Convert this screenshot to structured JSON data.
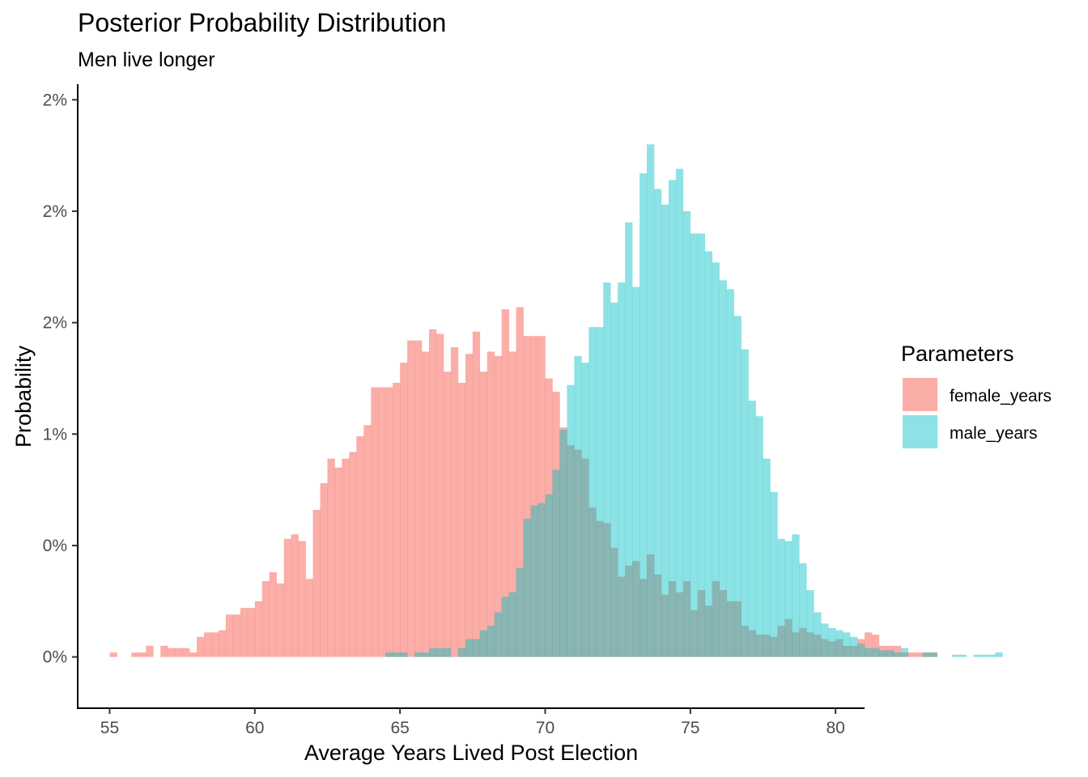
{
  "chart_data": {
    "type": "histogram",
    "title": "Posterior Probability Distribution",
    "subtitle": "Men live longer",
    "xlabel": "Average Years Lived Post Election",
    "ylabel": "Probability",
    "xlim": [
      53.9,
      81.0
    ],
    "ylim": [
      -0.0023,
      0.0257
    ],
    "x_ticks": [
      55,
      60,
      65,
      70,
      75,
      80
    ],
    "x_tick_labels": [
      "55",
      "60",
      "65",
      "70",
      "75",
      "80"
    ],
    "y_ticks": [
      0,
      0.005,
      0.01,
      0.015,
      0.02,
      0.025
    ],
    "y_tick_labels": [
      "0%",
      "0%",
      "1%",
      "2%",
      "2%",
      "2%"
    ],
    "grid": false,
    "legend": {
      "title": "Parameters",
      "placement": "right"
    },
    "bin_width": 0.25,
    "series": [
      {
        "name": "female_years",
        "color": "#F8766D",
        "opacity": 0.6,
        "start": 55.0,
        "values": [
          0.0002,
          0,
          0,
          0.0002,
          0.0002,
          0.0005,
          0,
          0.0005,
          0.0004,
          0.0004,
          0.0004,
          0.0002,
          0.0009,
          0.0011,
          0.0011,
          0.0012,
          0.0019,
          0.0019,
          0.0022,
          0.0022,
          0.0025,
          0.0034,
          0.0038,
          0.0033,
          0.0053,
          0.0055,
          0.0052,
          0.0035,
          0.0066,
          0.0078,
          0.0089,
          0.0085,
          0.0089,
          0.0092,
          0.0099,
          0.0104,
          0.0121,
          0.0121,
          0.0121,
          0.0123,
          0.0132,
          0.0142,
          0.0142,
          0.0137,
          0.0147,
          0.0145,
          0.0128,
          0.0139,
          0.0123,
          0.0136,
          0.0146,
          0.0128,
          0.0137,
          0.0135,
          0.0156,
          0.0137,
          0.0157,
          0.0144,
          0.0144,
          0.0144,
          0.0125,
          0.0119,
          0.0103,
          0.0095,
          0.0093,
          0.0089,
          0.0067,
          0.0061,
          0.006,
          0.0049,
          0.0036,
          0.0041,
          0.0043,
          0.0035,
          0.0046,
          0.0037,
          0.0028,
          0.0034,
          0.0029,
          0.0034,
          0.0021,
          0.003,
          0.0023,
          0.0034,
          0.003,
          0.0025,
          0.0025,
          0.0014,
          0.0012,
          0.001,
          0.001,
          0.0009,
          0.0014,
          0.0017,
          0.0011,
          0.0013,
          0.0011,
          0.001,
          0.0008,
          0.0007,
          0.0008,
          0.0005,
          0.0005,
          0.0008,
          0.0011,
          0.001,
          0.0005,
          0.0005,
          0.0005,
          0.0002,
          0.0002,
          0.0002,
          0.0002,
          0.0002
        ]
      },
      {
        "name": "male_years",
        "color": "#00BFC4",
        "opacity": 0.45,
        "start": 64.5,
        "values": [
          0.0002,
          0.0002,
          0.0002,
          0,
          0.0002,
          0.0002,
          0.0004,
          0.0004,
          0.0004,
          0,
          0.0004,
          0.0008,
          0.0008,
          0.0012,
          0.0014,
          0.002,
          0.0027,
          0.0029,
          0.004,
          0.0062,
          0.0068,
          0.0069,
          0.0073,
          0.0084,
          0.0102,
          0.0122,
          0.0135,
          0.0132,
          0.0148,
          0.0148,
          0.0168,
          0.0159,
          0.0168,
          0.0195,
          0.0166,
          0.0217,
          0.023,
          0.021,
          0.0203,
          0.0214,
          0.0219,
          0.02,
          0.019,
          0.019,
          0.0182,
          0.0177,
          0.0169,
          0.0165,
          0.0153,
          0.0138,
          0.0115,
          0.0108,
          0.0089,
          0.0074,
          0.0053,
          0.0052,
          0.0055,
          0.0042,
          0.003,
          0.002,
          0.0015,
          0.0013,
          0.0012,
          0.0011,
          0.0009,
          0.0006,
          0.0004,
          0.0004,
          0.0003,
          0.0003,
          0.0002,
          0.0004,
          0,
          0,
          0.0002,
          0.0002,
          0,
          0,
          0.0001,
          0.0001,
          0,
          0.0001,
          0.0001,
          0.0001,
          0.0002
        ]
      }
    ]
  }
}
